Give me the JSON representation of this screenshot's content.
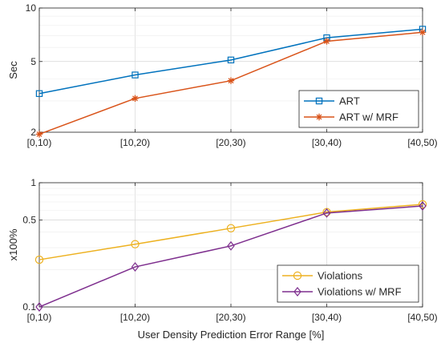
{
  "chart_data": [
    {
      "type": "line",
      "categories": [
        "[0,10)",
        "[10,20)",
        "[20,30)",
        "[30,40)",
        "[40,50)"
      ],
      "ylabel": "Sec",
      "xlabel": "",
      "yscale": "log",
      "ylim": [
        2,
        10
      ],
      "yticks": [
        2,
        5,
        10
      ],
      "ytick_labels": [
        "2",
        "5",
        "10"
      ],
      "grid": true,
      "legend_location": "bottom-right",
      "series": [
        {
          "name": "ART",
          "color": "#0072BD",
          "marker": "square",
          "values": [
            3.3,
            4.2,
            5.1,
            6.8,
            7.6
          ]
        },
        {
          "name": "ART w/ MRF",
          "color": "#D95319",
          "marker": "asterisk",
          "values": [
            1.95,
            3.1,
            3.9,
            6.5,
            7.3
          ]
        }
      ]
    },
    {
      "type": "line",
      "categories": [
        "[0,10)",
        "[10,20)",
        "[20,30)",
        "[30,40)",
        "[40,50)"
      ],
      "ylabel": "x100%",
      "xlabel": "User Density Prediction Error Range [%]",
      "yscale": "log",
      "ylim": [
        0.1,
        1
      ],
      "yticks": [
        0.1,
        0.5,
        1
      ],
      "ytick_labels": [
        "0.1",
        "0.5",
        "1"
      ],
      "grid": true,
      "legend_location": "bottom-right",
      "series": [
        {
          "name": "Violations",
          "color": "#EDB120",
          "marker": "circle",
          "values": [
            0.24,
            0.32,
            0.43,
            0.58,
            0.67
          ]
        },
        {
          "name": "Violations w/ MRF",
          "color": "#7E2F8E",
          "marker": "diamond",
          "values": [
            0.1,
            0.21,
            0.31,
            0.57,
            0.65
          ]
        }
      ]
    }
  ]
}
